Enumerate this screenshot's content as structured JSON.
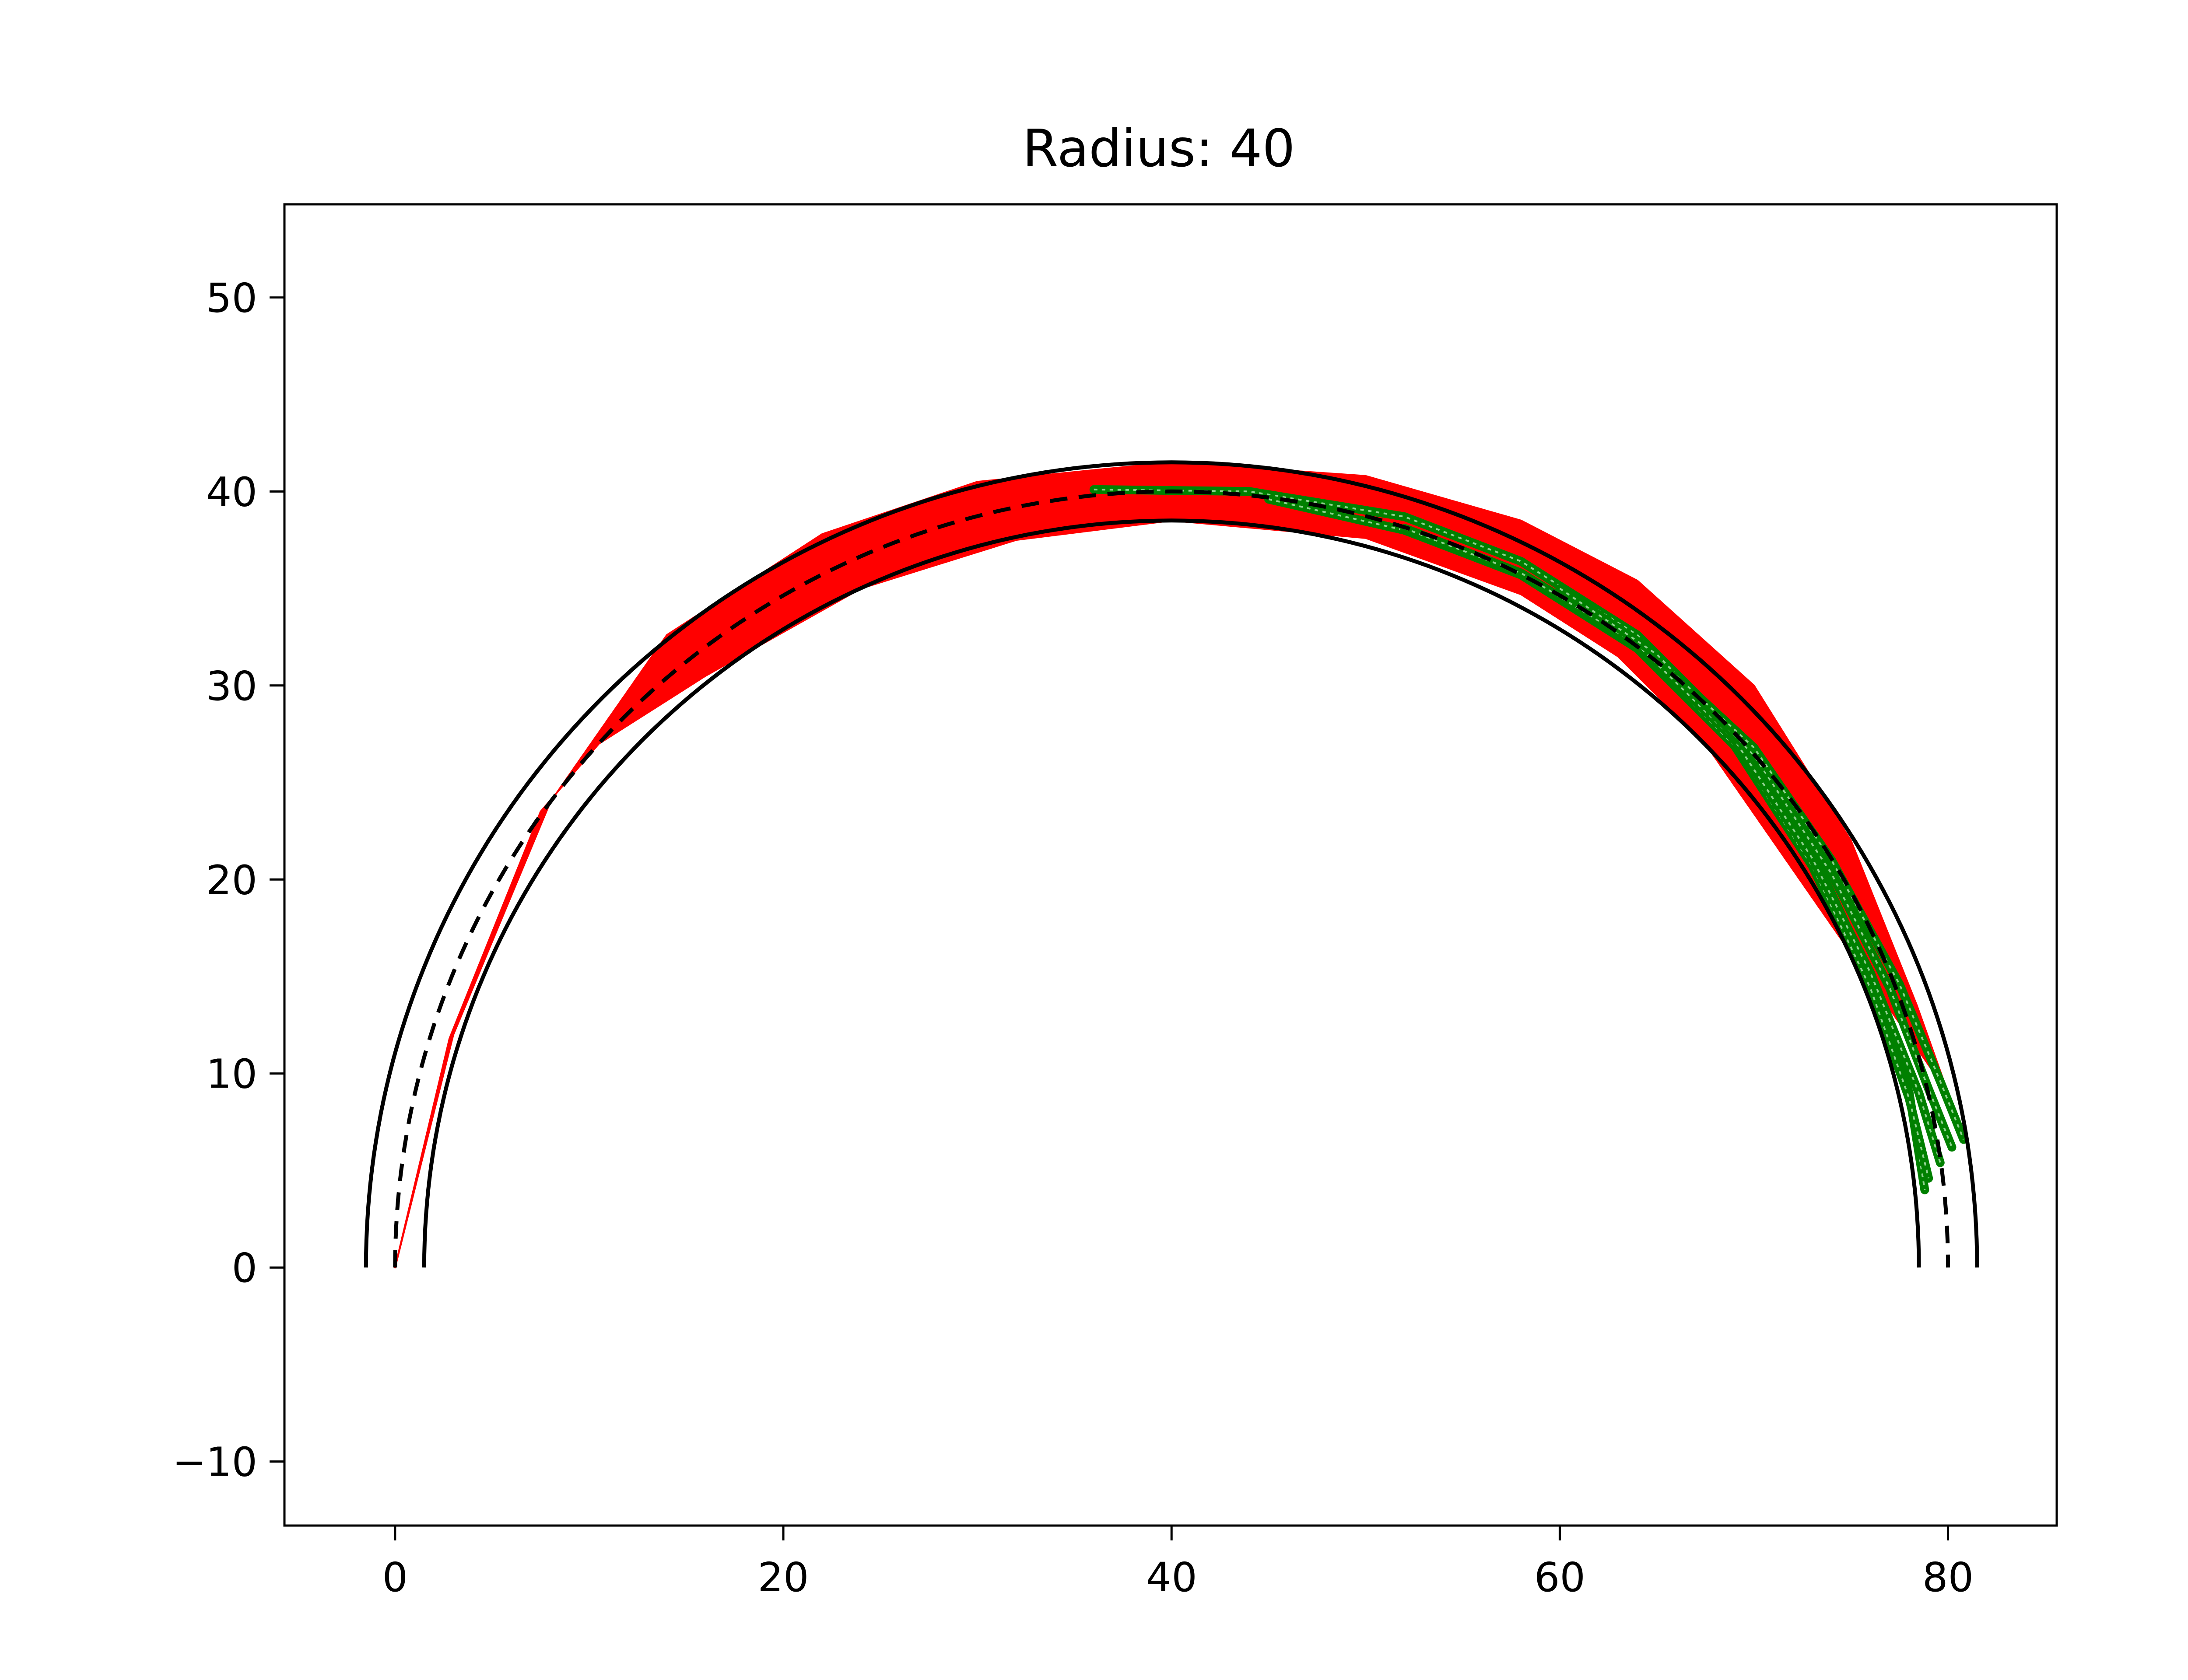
{
  "chart_data": {
    "type": "line",
    "title": "Radius: 40",
    "xlabel": "",
    "ylabel": "",
    "xlim": [
      -5.7,
      85.6
    ],
    "ylim": [
      -13.3,
      54.8
    ],
    "grid": false,
    "x_ticks": [
      0,
      20,
      40,
      60,
      80
    ],
    "y_ticks": [
      -10,
      0,
      10,
      20,
      30,
      40,
      50
    ],
    "x_tick_labels": [
      "0",
      "20",
      "40",
      "60",
      "80"
    ],
    "y_tick_labels": [
      "−10",
      "0",
      "10",
      "20",
      "30",
      "40",
      "50"
    ],
    "track": {
      "center": [
        40,
        0
      ],
      "radius": 40,
      "half_width": 1.5,
      "angle_range_deg": [
        0,
        180
      ]
    },
    "series": [
      {
        "role": "red-trajectory-band",
        "color": "#ff0000",
        "outer_points": [
          [
            0,
            0
          ],
          [
            3,
            12
          ],
          [
            8,
            24
          ],
          [
            14,
            32.6
          ],
          [
            22,
            37.8
          ],
          [
            30,
            40.5
          ],
          [
            40,
            41.5
          ],
          [
            50,
            40.8
          ],
          [
            58,
            38.5
          ],
          [
            64,
            35.4
          ],
          [
            70,
            30
          ],
          [
            75,
            22
          ],
          [
            78.4,
            13.5
          ],
          [
            80,
            9
          ]
        ],
        "inner_points": [
          [
            0,
            0
          ],
          [
            2.8,
            11.8
          ],
          [
            7.5,
            23.5
          ],
          [
            10.5,
            27
          ],
          [
            16,
            30.5
          ],
          [
            24,
            35
          ],
          [
            32,
            37.5
          ],
          [
            40,
            38.5
          ],
          [
            50,
            37.6
          ],
          [
            58,
            34.7
          ],
          [
            63,
            31.5
          ],
          [
            67.5,
            27
          ]
        ]
      },
      {
        "role": "green-trajectories",
        "color": "#008000",
        "curves": [
          [
            [
              36,
              40.1
            ],
            [
              44,
              40.0
            ],
            [
              52,
              38.7
            ],
            [
              58,
              36.4
            ],
            [
              64,
              32.6
            ],
            [
              69,
              27.6
            ],
            [
              73,
              21.4
            ],
            [
              76,
              15.0
            ],
            [
              78,
              9.0
            ],
            [
              78.8,
              4.0
            ]
          ],
          [
            [
              45,
              39.6
            ],
            [
              52,
              38.0
            ],
            [
              58,
              35.7
            ],
            [
              64,
              31.9
            ],
            [
              69,
              26.9
            ],
            [
              73,
              20.7
            ],
            [
              76,
              14.4
            ],
            [
              78,
              8.7
            ],
            [
              79,
              4.6
            ]
          ],
          [
            [
              52,
              38.1
            ],
            [
              58,
              35.8
            ],
            [
              64,
              32.1
            ],
            [
              69,
              27.2
            ],
            [
              73,
              21.1
            ],
            [
              76,
              15.2
            ],
            [
              78.5,
              9.0
            ],
            [
              79.6,
              5.4
            ]
          ],
          [
            [
              60,
              35.0
            ],
            [
              65,
              31.6
            ],
            [
              70,
              26.4
            ],
            [
              74,
              20.3
            ],
            [
              77,
              14.4
            ],
            [
              79,
              9.2
            ],
            [
              80.2,
              6.2
            ]
          ],
          [
            [
              66,
              30.5
            ],
            [
              70,
              26.8
            ],
            [
              74,
              21.0
            ],
            [
              77.5,
              14.6
            ],
            [
              79.6,
              9.6
            ],
            [
              80.8,
              6.6
            ]
          ]
        ]
      }
    ]
  }
}
